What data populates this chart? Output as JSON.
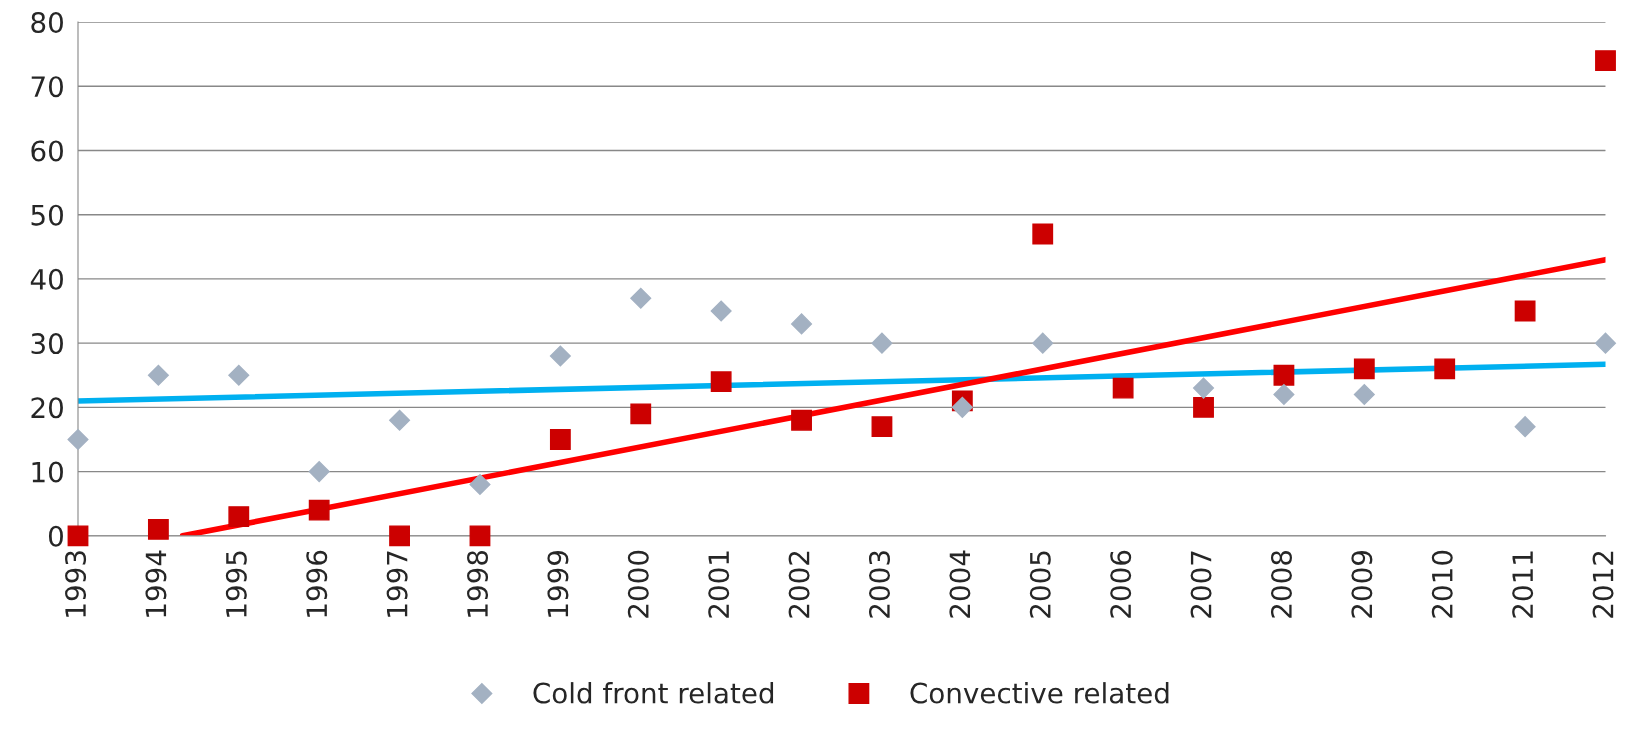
{
  "chart_data": {
    "type": "scatter",
    "x": [
      1993,
      1994,
      1995,
      1996,
      1997,
      1998,
      1999,
      2000,
      2001,
      2002,
      2003,
      2004,
      2005,
      2006,
      2007,
      2008,
      2009,
      2010,
      2011,
      2012
    ],
    "series": [
      {
        "name": "Cold front related",
        "color": "#a3b1c2",
        "marker": "diamond",
        "values": [
          15,
          25,
          25,
          10,
          18,
          8,
          28,
          37,
          35,
          33,
          30,
          20,
          30,
          null,
          23,
          22,
          22,
          null,
          17,
          30
        ]
      },
      {
        "name": "Convective related",
        "color": "#cc0000",
        "marker": "square",
        "values": [
          0,
          1,
          3,
          4,
          0,
          0,
          15,
          19,
          24,
          18,
          17,
          21,
          47,
          23,
          20,
          25,
          26,
          26,
          35,
          74
        ]
      },
      {
        "type": "line",
        "color": "#00b0f0",
        "x": [
          1993,
          2012
        ],
        "values": [
          21,
          26.7
        ]
      },
      {
        "type": "line",
        "color": "#ff0000",
        "x": [
          1994.3,
          2012
        ],
        "values": [
          0,
          43
        ]
      }
    ],
    "xlim": [
      1993,
      2012
    ],
    "xticks": [
      1993,
      1994,
      1995,
      1996,
      1997,
      1998,
      1999,
      2000,
      2001,
      2002,
      2003,
      2004,
      2005,
      2006,
      2007,
      2008,
      2009,
      2010,
      2011,
      2012
    ],
    "ylim": [
      0,
      80
    ],
    "yticks": [
      0,
      10,
      20,
      30,
      40,
      50,
      60,
      70,
      80
    ],
    "grid": "y",
    "legend": "bottom"
  }
}
